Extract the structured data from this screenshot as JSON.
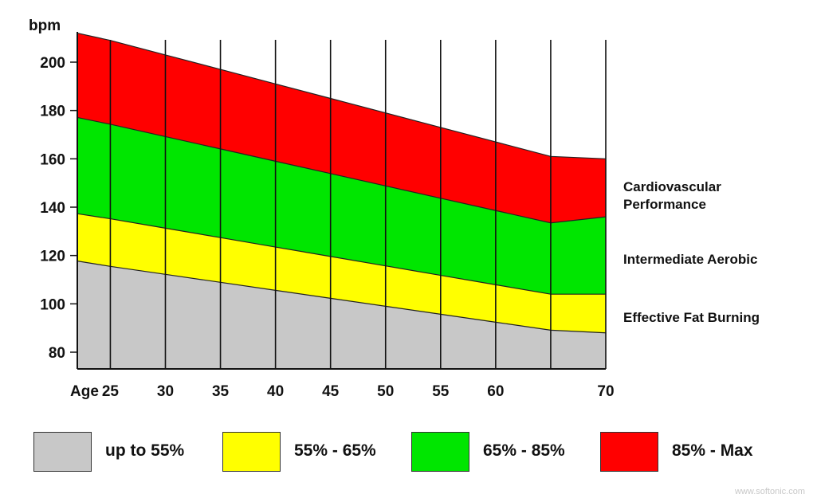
{
  "chart_data": {
    "type": "area",
    "title": "",
    "ylabel": "bpm",
    "xlabel": "Age",
    "x": [
      22,
      25,
      30,
      35,
      40,
      45,
      50,
      55,
      60,
      65,
      70
    ],
    "x_ticks": [
      25,
      30,
      35,
      40,
      45,
      50,
      55,
      60,
      70
    ],
    "y_ticks": [
      80,
      100,
      120,
      140,
      160,
      180,
      200
    ],
    "xlim": [
      22,
      70
    ],
    "ylim": [
      73,
      213
    ],
    "series": [
      {
        "name": "up to 55%",
        "color": "#c8c8c8",
        "values": [
          117.7,
          115.5,
          112.2,
          108.9,
          105.6,
          102.3,
          99.0,
          95.7,
          92.4,
          89.1,
          88.0
        ]
      },
      {
        "name": "55% - 65%",
        "color": "#ffff00",
        "values": [
          137.3,
          135.2,
          131.3,
          127.4,
          123.5,
          119.6,
          115.7,
          111.8,
          107.9,
          104.0,
          104.0
        ]
      },
      {
        "name": "65% - 85%",
        "color": "#00e600",
        "values": [
          177.1,
          174.3,
          169.2,
          164.1,
          159.0,
          153.9,
          148.8,
          143.7,
          138.6,
          133.5,
          136.0
        ]
      },
      {
        "name": "85% - Max",
        "color": "#ff0000",
        "values": [
          212.0,
          209.0,
          203.0,
          197.0,
          191.0,
          185.0,
          179.0,
          173.0,
          167.0,
          161.0,
          160.0
        ]
      }
    ],
    "zone_labels": [
      "Cardiovascular",
      "Performance",
      "Intermediate Aerobic",
      "Effective Fat Burning"
    ],
    "grid": true,
    "legend": "bottom"
  },
  "legend": [
    {
      "label": "up to 55%",
      "color": "#c8c8c8"
    },
    {
      "label": "55% - 65%",
      "color": "#ffff00"
    },
    {
      "label": "65% - 85%",
      "color": "#00e600"
    },
    {
      "label": "85% - Max",
      "color": "#ff0000"
    }
  ],
  "watermark": "www.softonic.com"
}
